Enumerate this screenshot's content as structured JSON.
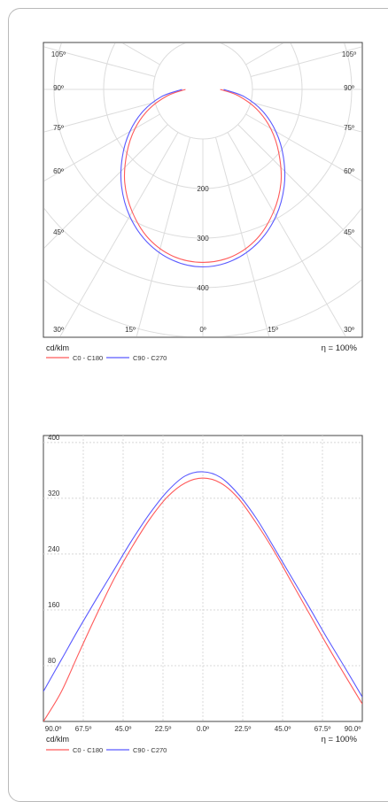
{
  "chart_data": [
    {
      "type": "polar",
      "unit": "cd/klm",
      "efficiency": "η = 100%",
      "angle_labels": [
        "105º",
        "90º",
        "75º",
        "60º",
        "45º",
        "30º",
        "15º",
        "0º"
      ],
      "radial_labels": [
        "200",
        "300",
        "400"
      ],
      "rmax": 500,
      "series": [
        {
          "name": "C0 - C180",
          "color": "#ff5a5a",
          "angles": [
            0,
            10,
            20,
            30,
            40,
            50,
            60,
            70,
            80,
            90
          ],
          "values": [
            349,
            342,
            320,
            285,
            245,
            200,
            158,
            115,
            72,
            35
          ]
        },
        {
          "name": "C90 - C270",
          "color": "#5a5aff",
          "angles": [
            0,
            10,
            20,
            30,
            40,
            50,
            60,
            70,
            80,
            90
          ],
          "values": [
            358,
            350,
            328,
            295,
            255,
            212,
            170,
            128,
            85,
            42
          ]
        }
      ],
      "legend": [
        "C0 - C180",
        "C90 - C270"
      ]
    },
    {
      "type": "line",
      "unit": "cd/klm",
      "efficiency": "η = 100%",
      "x_tick_labels": [
        "90.0º",
        "67.5º",
        "45.0º",
        "22.5º",
        "0.0º",
        "22.5º",
        "45.0º",
        "67.5º",
        "90.0º"
      ],
      "xlim": [
        -90,
        90
      ],
      "y_ticks": [
        80,
        160,
        240,
        320,
        400
      ],
      "ylim": [
        0,
        400
      ],
      "grid": true,
      "series": [
        {
          "name": "C0 - C180",
          "color": "#ff5a5a",
          "x": [
            -90,
            -80,
            -70,
            -60,
            -50,
            -40,
            -30,
            -20,
            -10,
            0,
            10,
            20,
            30,
            40,
            50,
            60,
            70,
            80,
            90
          ],
          "y": [
            0,
            42,
            98,
            153,
            205,
            250,
            290,
            322,
            342,
            349,
            342,
            320,
            285,
            245,
            200,
            155,
            110,
            67,
            25
          ]
        },
        {
          "name": "C90 - C270",
          "color": "#5a5aff",
          "x": [
            -90,
            -80,
            -70,
            -60,
            -50,
            -40,
            -30,
            -20,
            -10,
            0,
            10,
            20,
            30,
            40,
            50,
            60,
            70,
            80,
            90
          ],
          "y": [
            43,
            88,
            133,
            176,
            218,
            260,
            298,
            330,
            352,
            358,
            350,
            326,
            292,
            250,
            207,
            164,
            120,
            78,
            35
          ]
        }
      ],
      "legend": [
        "C0 - C180",
        "C90 - C270"
      ]
    }
  ]
}
